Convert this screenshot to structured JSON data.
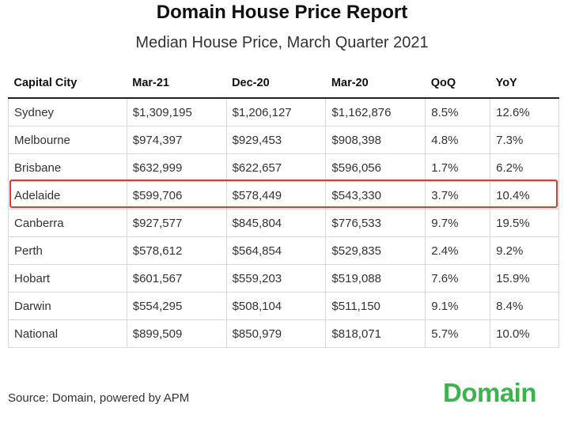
{
  "title": "Domain House Price Report",
  "subtitle": "Median House Price, March Quarter 2021",
  "table": {
    "headers": [
      "Capital City",
      "Mar-21",
      "Dec-20",
      "Mar-20",
      "QoQ",
      "YoY"
    ],
    "rows": [
      [
        "Sydney",
        "$1,309,195",
        "$1,206,127",
        "$1,162,876",
        "8.5%",
        "12.6%"
      ],
      [
        "Melbourne",
        "$974,397",
        "$929,453",
        "$908,398",
        "4.8%",
        "7.3%"
      ],
      [
        "Brisbane",
        "$632,999",
        "$622,657",
        "$596,056",
        "1.7%",
        "6.2%"
      ],
      [
        "Adelaide",
        "$599,706",
        "$578,449",
        "$543,330",
        "3.7%",
        "10.4%"
      ],
      [
        "Canberra",
        "$927,577",
        "$845,804",
        "$776,533",
        "9.7%",
        "19.5%"
      ],
      [
        "Perth",
        "$578,612",
        "$564,854",
        "$529,835",
        "2.4%",
        "9.2%"
      ],
      [
        "Hobart",
        "$601,567",
        "$559,203",
        "$519,088",
        "7.6%",
        "15.9%"
      ],
      [
        "Darwin",
        "$554,295",
        "$508,104",
        "$511,150",
        "9.1%",
        "8.4%"
      ],
      [
        "National",
        "$899,509",
        "$850,979",
        "$818,071",
        "5.7%",
        "10.0%"
      ]
    ],
    "highlighted_row": "Adelaide"
  },
  "source": "Source: Domain, powered by APM",
  "logo_text": "Domain",
  "colors": {
    "highlight_border": "#e03a2f",
    "logo": "#3bb54a",
    "grid": "#d9d9d9"
  }
}
